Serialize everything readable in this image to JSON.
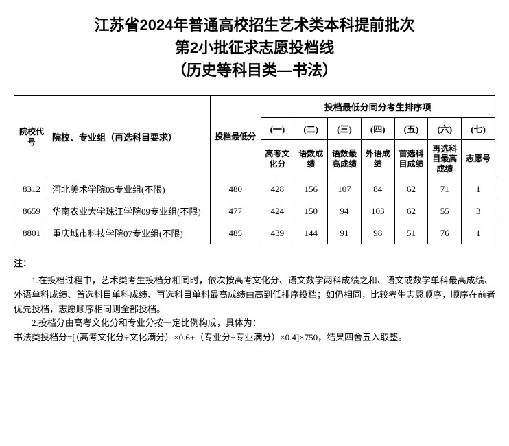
{
  "title": {
    "line1": "江苏省2024年普通高校招生艺术类本科提前批次",
    "line2": "第2小批征求志愿投档线",
    "line3": "（历史等科目类—书法）"
  },
  "headers": {
    "code": "院校代号",
    "school": "院校、专业组（再选科目要求）",
    "min_score": "投档最低分",
    "sort_group": "投档最低分同分考生排序项",
    "cols_num": [
      "(一)",
      "(二)",
      "(三)",
      "(四)",
      "(五)",
      "(六)",
      "(七)"
    ],
    "cols_name": [
      "高考文化分",
      "语数成绩",
      "语数最高成绩",
      "外语成绩",
      "首选科目成绩",
      "再选科目最高成绩",
      "志愿号"
    ]
  },
  "rows": [
    {
      "code": "8312",
      "school": "河北美术学院05专业组(不限)",
      "min": "480",
      "vals": [
        "428",
        "156",
        "107",
        "84",
        "62",
        "71",
        "1"
      ]
    },
    {
      "code": "8659",
      "school": "华南农业大学珠江学院09专业组(不限)",
      "min": "477",
      "vals": [
        "424",
        "150",
        "94",
        "103",
        "62",
        "55",
        "3"
      ]
    },
    {
      "code": "8801",
      "school": "重庆城市科技学院07专业组(不限)",
      "min": "485",
      "vals": [
        "439",
        "144",
        "91",
        "98",
        "51",
        "76",
        "1"
      ]
    }
  ],
  "notes": {
    "title": "注：",
    "n1": "1.在投档过程中，艺术类考生投档分相同时，依次按高考文化分、语文数学两科成绩之和、语文或数学单科最高成绩、外语单科成绩、首选科目单科成绩、再选科目单科最高成绩由高到低排序投档；如仍相同，比较考生志愿顺序，顺序在前者优先投档，志愿顺序相同则全部投档。",
    "n2": "2.投档分由高考文化分和专业分按一定比例构成，具体为：",
    "n3": "书法类投档分=[（高考文化分÷文化满分）×0.6+（专业分÷专业满分）×0.4]×750，结果四舍五入取整。"
  }
}
